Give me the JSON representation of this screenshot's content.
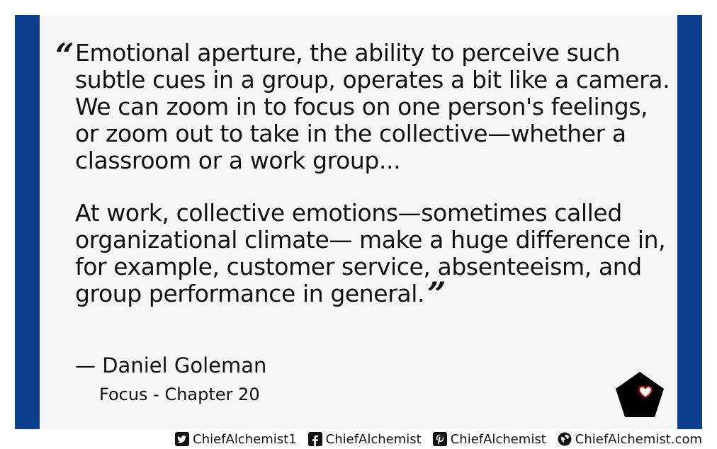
{
  "quote": {
    "open_mark": "“",
    "close_mark": "”",
    "paragraphs": [
      "Emotional aperture, the ability to perceive such subtle cues in a group, operates a bit like a camera. We can zoom in to focus on one person's feelings, or zoom out to take in the collective—whether a classroom or a work group...",
      "At work, collective emotions—sometimes called organizational climate— make a huge difference in, for example, customer service, absenteeism, and group performance in general."
    ]
  },
  "author": "— Daniel Goleman",
  "source": "Focus - Chapter 20",
  "badge_icon": "pentagon-heart-icon",
  "colors": {
    "frame": "#0d3f8f",
    "panel": "#f6f6f6",
    "heart": "#c0171a"
  },
  "footer": {
    "twitter": "ChiefAlchemist1",
    "facebook": "ChiefAlchemist",
    "pinterest": "ChiefAlchemist",
    "website": "ChiefAlchemist.com"
  }
}
